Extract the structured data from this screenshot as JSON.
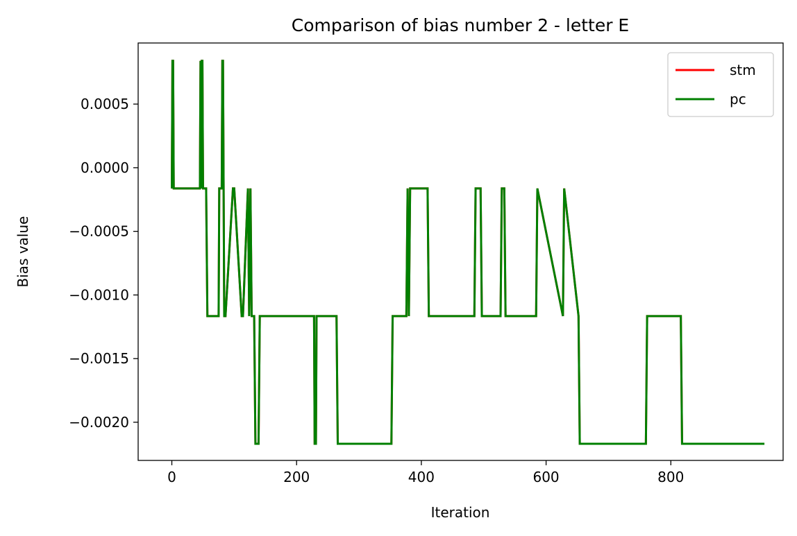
{
  "chart_data": {
    "type": "line",
    "title": "Comparison of bias number 2 - letter E",
    "xlabel": "Iteration",
    "ylabel": "Bias value",
    "xlim": [
      -54,
      980
    ],
    "ylim": [
      -0.0023,
      0.00098
    ],
    "xticks": [
      0,
      200,
      400,
      600,
      800
    ],
    "xtick_labels": [
      "0",
      "200",
      "400",
      "600",
      "800"
    ],
    "yticks": [
      0.0005,
      0.0,
      -0.0005,
      -0.001,
      -0.0015,
      -0.002
    ],
    "ytick_labels": [
      "0.0005",
      "0.0000",
      "−0.0005",
      "−0.0010",
      "−0.0015",
      "−0.0020"
    ],
    "grid": false,
    "legend_position": "top-right",
    "legend": [
      "stm",
      "pc"
    ],
    "series": [
      {
        "name": "stm",
        "color": "#ff0000",
        "x": [
          0,
          1,
          2,
          3,
          45,
          46,
          47,
          48,
          49,
          50,
          55,
          57,
          75,
          76,
          80,
          81,
          82,
          84,
          86,
          98,
          100,
          112,
          114,
          122,
          124,
          126,
          128,
          132,
          134,
          139,
          141,
          228,
          229,
          231,
          232,
          264,
          266,
          352,
          354,
          376,
          378,
          380,
          382,
          410,
          412,
          485,
          487,
          495,
          497,
          527,
          529,
          533,
          535,
          584,
          586,
          627,
          629,
          652,
          654,
          760,
          762,
          816,
          818,
          950
        ],
        "y": [
          -0.000163,
          0.00084,
          0.00084,
          -0.000163,
          -0.000163,
          0.00084,
          -0.000163,
          0.00084,
          0.00084,
          -0.000163,
          -0.000163,
          -0.001166,
          -0.001166,
          -0.000163,
          -0.000163,
          0.00084,
          0.00084,
          -0.001166,
          -0.001166,
          -0.000163,
          -0.000163,
          -0.001166,
          -0.001166,
          -0.000163,
          -0.001166,
          -0.000163,
          -0.001166,
          -0.001166,
          -0.002169,
          -0.002169,
          -0.001166,
          -0.001166,
          -0.002169,
          -0.002169,
          -0.001166,
          -0.001166,
          -0.002169,
          -0.002169,
          -0.001166,
          -0.001166,
          -0.000163,
          -0.001166,
          -0.000163,
          -0.000163,
          -0.001166,
          -0.001166,
          -0.000163,
          -0.000163,
          -0.001166,
          -0.001166,
          -0.000163,
          -0.000163,
          -0.001166,
          -0.001166,
          -0.000163,
          -0.001166,
          -0.000163,
          -0.001166,
          -0.002169,
          -0.002169,
          -0.001166,
          -0.001166,
          -0.002169,
          -0.002169
        ]
      },
      {
        "name": "pc",
        "color": "#008000",
        "x": [
          0,
          1,
          2,
          3,
          45,
          46,
          47,
          48,
          49,
          50,
          55,
          57,
          75,
          76,
          80,
          81,
          82,
          84,
          86,
          98,
          100,
          112,
          114,
          122,
          124,
          126,
          128,
          132,
          134,
          139,
          141,
          228,
          229,
          231,
          232,
          264,
          266,
          352,
          354,
          376,
          378,
          380,
          382,
          410,
          412,
          485,
          487,
          495,
          497,
          527,
          529,
          533,
          535,
          584,
          586,
          627,
          629,
          652,
          654,
          760,
          762,
          816,
          818,
          950
        ],
        "y": [
          -0.000163,
          0.00084,
          0.00084,
          -0.000163,
          -0.000163,
          0.00084,
          -0.000163,
          0.00084,
          0.00084,
          -0.000163,
          -0.000163,
          -0.001166,
          -0.001166,
          -0.000163,
          -0.000163,
          0.00084,
          0.00084,
          -0.001166,
          -0.001166,
          -0.000163,
          -0.000163,
          -0.001166,
          -0.001166,
          -0.000163,
          -0.001166,
          -0.000163,
          -0.001166,
          -0.001166,
          -0.002169,
          -0.002169,
          -0.001166,
          -0.001166,
          -0.002169,
          -0.002169,
          -0.001166,
          -0.001166,
          -0.002169,
          -0.002169,
          -0.001166,
          -0.001166,
          -0.000163,
          -0.001166,
          -0.000163,
          -0.000163,
          -0.001166,
          -0.001166,
          -0.000163,
          -0.000163,
          -0.001166,
          -0.001166,
          -0.000163,
          -0.000163,
          -0.001166,
          -0.001166,
          -0.000163,
          -0.001166,
          -0.000163,
          -0.001166,
          -0.002169,
          -0.002169,
          -0.001166,
          -0.001166,
          -0.002169,
          -0.002169
        ]
      }
    ]
  }
}
